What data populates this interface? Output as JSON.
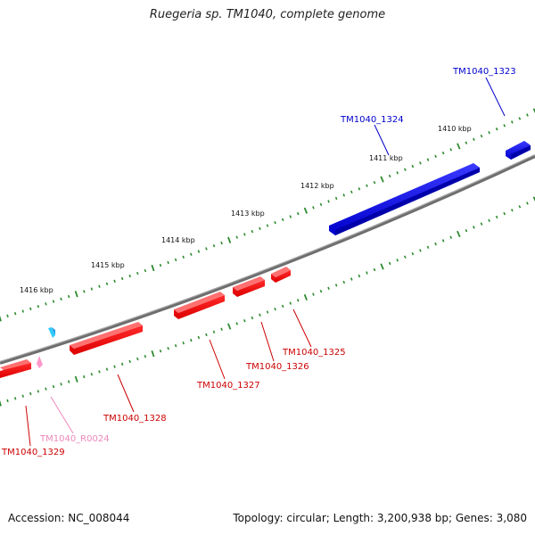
{
  "title": "Ruegeria sp. TM1040, complete genome",
  "footer": {
    "accession": "Accession: NC_008044",
    "summary": "Topology: circular; Length: 3,200,938 bp; Genes: 3,080"
  },
  "scale_labels": [
    "1410 kbp",
    "1411 kbp",
    "1412 kbp",
    "1413 kbp",
    "1414 kbp",
    "1415 kbp",
    "1416 kbp"
  ],
  "genes": [
    {
      "name": "TM1040_1323",
      "strand": "forward",
      "color": "#0000cc"
    },
    {
      "name": "TM1040_1324",
      "strand": "forward",
      "color": "#0000cc"
    },
    {
      "name": "TM1040_1325",
      "strand": "reverse",
      "color": "#cc0000"
    },
    {
      "name": "TM1040_1326",
      "strand": "reverse",
      "color": "#cc0000"
    },
    {
      "name": "TM1040_1327",
      "strand": "reverse",
      "color": "#cc0000"
    },
    {
      "name": "TM1040_1328",
      "strand": "reverse",
      "color": "#cc0000"
    },
    {
      "name": "TM1040_R0024",
      "strand": "reverse",
      "color": "#ee88bb"
    },
    {
      "name": "TM1040_1329",
      "strand": "reverse",
      "color": "#cc0000"
    }
  ],
  "colors": {
    "forward_gene": "#0000ff",
    "reverse_gene": "#ff0000",
    "rna_gene": "#ff99cc",
    "misc_feature": "#33ccff",
    "backbone": "#808080",
    "tick": "#2e8b2e"
  }
}
